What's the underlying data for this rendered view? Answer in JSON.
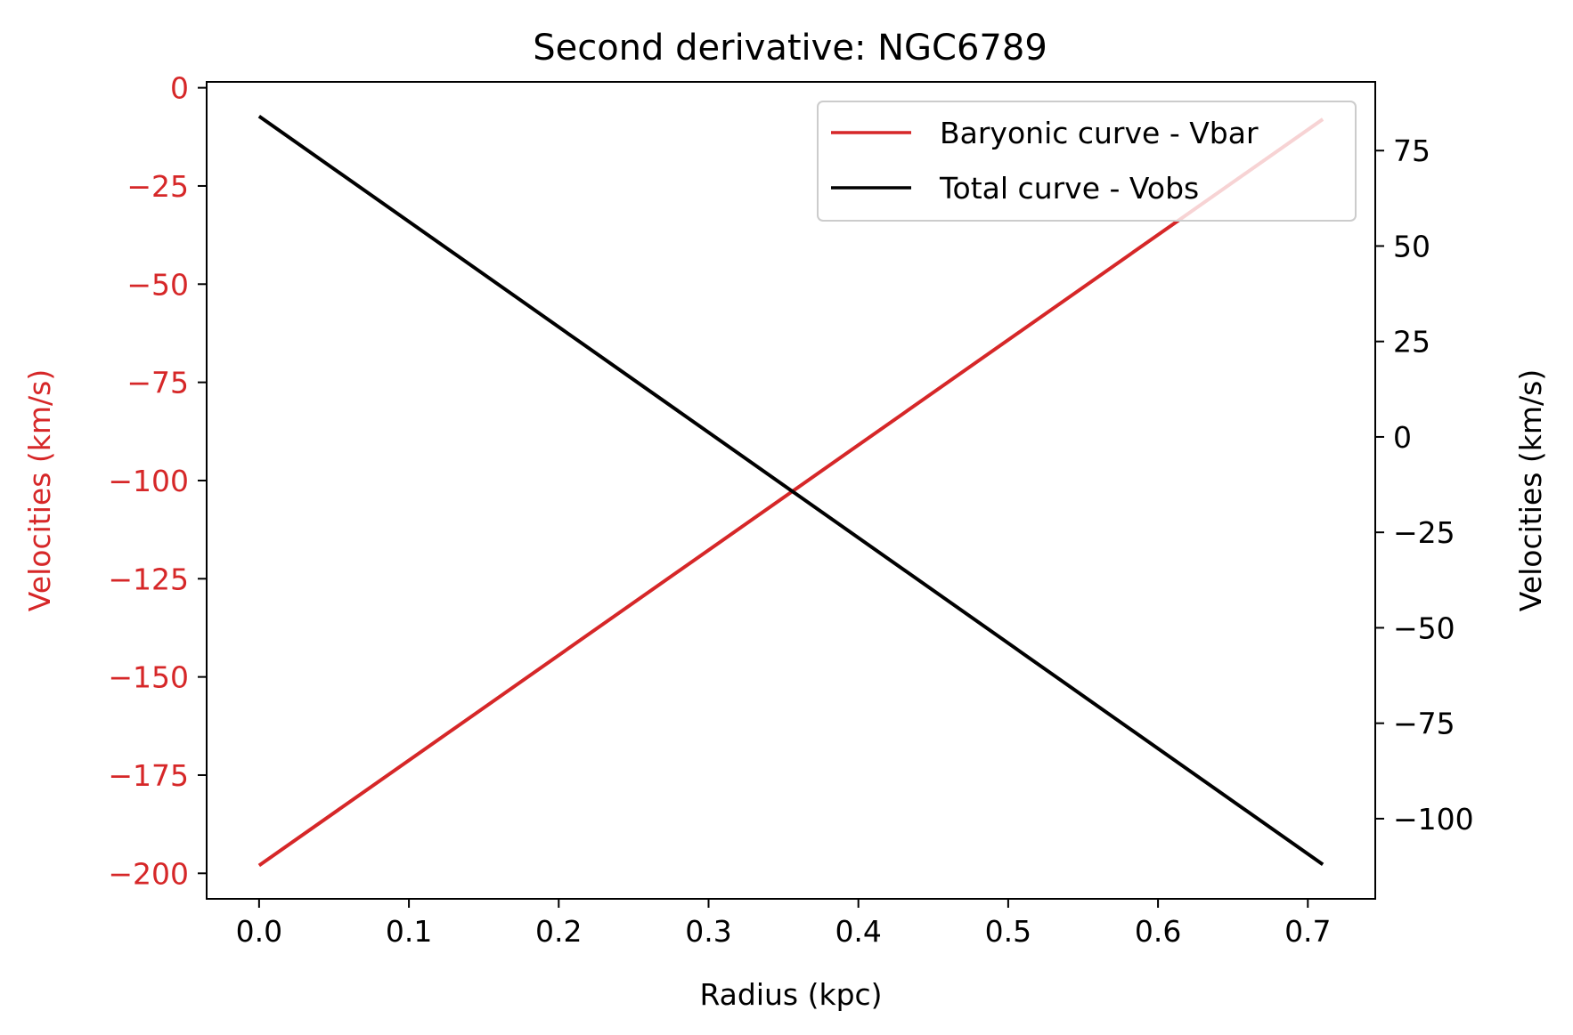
{
  "chart_data": {
    "type": "line",
    "title": "Second derivative: NGC6789",
    "xlabel": "Radius (kpc)",
    "ylabel_left": "Velocities (km/s)",
    "ylabel_right": "Velocities (km/s)",
    "xlim": [
      -0.035,
      0.745
    ],
    "ylim_left": [
      -206.5,
      1.5
    ],
    "ylim_right": [
      -121.0,
      93.0
    ],
    "x_ticks": [
      0.0,
      0.1,
      0.2,
      0.3,
      0.4,
      0.5,
      0.6,
      0.7
    ],
    "x_tick_labels": [
      "0.0",
      "0.1",
      "0.2",
      "0.3",
      "0.4",
      "0.5",
      "0.6",
      "0.7"
    ],
    "y_left_ticks": [
      0,
      -25,
      -50,
      -75,
      -100,
      -125,
      -150,
      -175,
      -200
    ],
    "y_left_tick_labels": [
      "0",
      "−25",
      "−50",
      "−75",
      "−100",
      "−125",
      "−150",
      "−175",
      "−200"
    ],
    "y_right_ticks": [
      75,
      50,
      25,
      0,
      -25,
      -50,
      -75,
      -100
    ],
    "y_right_tick_labels": [
      "75",
      "50",
      "25",
      "0",
      "−25",
      "−50",
      "−75",
      "−100"
    ],
    "grid": false,
    "legend_position": "top-right",
    "series": [
      {
        "name": "Baryonic curve - Vbar",
        "axis": "left",
        "color": "#d62728",
        "x": [
          0.0,
          0.71
        ],
        "y": [
          -198.0,
          -8.0
        ]
      },
      {
        "name": "Total curve - Vobs",
        "axis": "right",
        "color": "#000000",
        "x": [
          0.0,
          0.71
        ],
        "y": [
          84.0,
          -112.0
        ]
      }
    ],
    "left_axis_color": "#d62728",
    "right_axis_color": "#000000"
  }
}
